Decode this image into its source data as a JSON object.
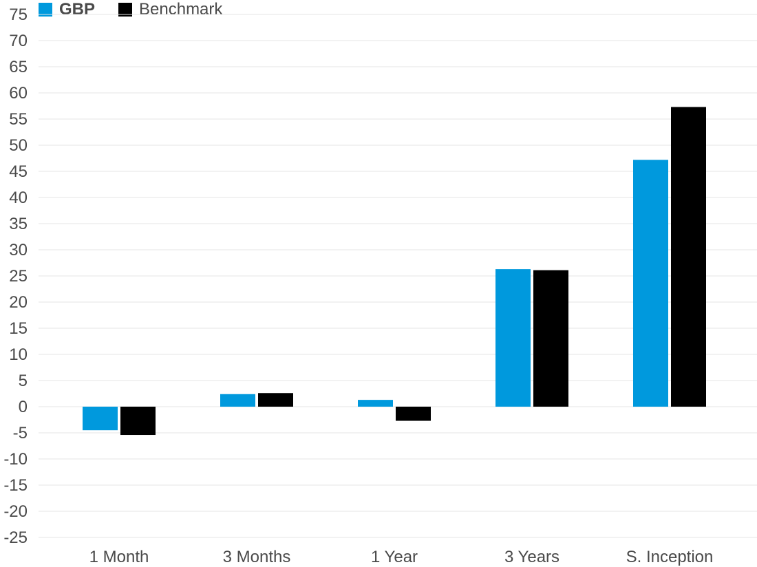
{
  "chart_data": {
    "type": "bar",
    "categories": [
      "1 Month",
      "3 Months",
      "1 Year",
      "3 Years",
      "S. Inception"
    ],
    "series": [
      {
        "name": "GBP",
        "color": "#0099dd",
        "values": [
          -4.5,
          2.4,
          1.3,
          26.3,
          47.2
        ]
      },
      {
        "name": "Benchmark",
        "color": "#000000",
        "values": [
          -5.4,
          2.6,
          -2.7,
          26.1,
          57.3
        ]
      }
    ],
    "ylim": [
      -25,
      75
    ],
    "yticks": [
      75,
      70,
      65,
      60,
      55,
      50,
      45,
      40,
      35,
      30,
      25,
      20,
      15,
      10,
      5,
      0,
      -5,
      -10,
      -15,
      -20,
      -25
    ],
    "grid": true,
    "legend_position": "top-left",
    "title": "",
    "xlabel": "",
    "ylabel": ""
  }
}
